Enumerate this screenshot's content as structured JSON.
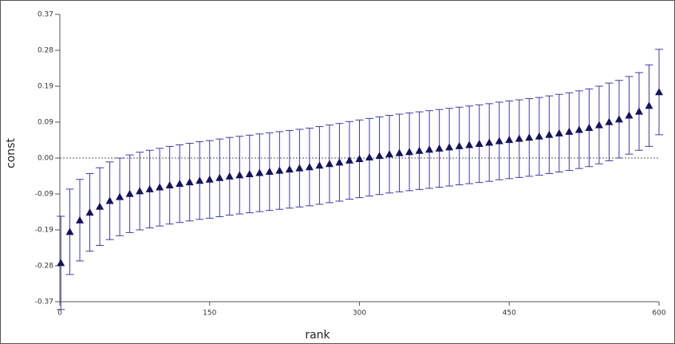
{
  "chart_data": {
    "type": "caterpillar",
    "x_label": "rank",
    "y_label": "const",
    "x": [
      1,
      10,
      20,
      30,
      40,
      50,
      60,
      70,
      80,
      90,
      100,
      110,
      120,
      130,
      140,
      150,
      160,
      170,
      180,
      190,
      200,
      210,
      220,
      230,
      240,
      250,
      260,
      270,
      280,
      290,
      300,
      310,
      320,
      330,
      340,
      350,
      360,
      370,
      380,
      390,
      400,
      410,
      420,
      430,
      440,
      450,
      460,
      470,
      480,
      490,
      500,
      510,
      520,
      530,
      540,
      550,
      560,
      570,
      580,
      590,
      600
    ],
    "values": [
      -0.27,
      -0.19,
      -0.16,
      -0.14,
      -0.125,
      -0.11,
      -0.1,
      -0.092,
      -0.085,
      -0.08,
      -0.075,
      -0.07,
      -0.066,
      -0.062,
      -0.058,
      -0.055,
      -0.051,
      -0.047,
      -0.044,
      -0.041,
      -0.038,
      -0.035,
      -0.032,
      -0.029,
      -0.026,
      -0.023,
      -0.019,
      -0.015,
      -0.011,
      -0.006,
      -0.002,
      0.002,
      0.006,
      0.01,
      0.013,
      0.016,
      0.019,
      0.022,
      0.025,
      0.028,
      0.031,
      0.034,
      0.037,
      0.04,
      0.044,
      0.047,
      0.05,
      0.053,
      0.056,
      0.06,
      0.064,
      0.068,
      0.073,
      0.078,
      0.085,
      0.093,
      0.1,
      0.11,
      0.12,
      0.135,
      0.17
    ],
    "errors": [
      0.12,
      0.11,
      0.105,
      0.1,
      0.1,
      0.1,
      0.1,
      0.1,
      0.1,
      0.1,
      0.1,
      0.1,
      0.1,
      0.1,
      0.1,
      0.1,
      0.1,
      0.1,
      0.1,
      0.1,
      0.1,
      0.1,
      0.1,
      0.1,
      0.1,
      0.1,
      0.1,
      0.1,
      0.1,
      0.1,
      0.1,
      0.1,
      0.1,
      0.1,
      0.1,
      0.1,
      0.1,
      0.1,
      0.1,
      0.1,
      0.1,
      0.1,
      0.1,
      0.1,
      0.1,
      0.1,
      0.1,
      0.1,
      0.1,
      0.1,
      0.1,
      0.1,
      0.1,
      0.1,
      0.1,
      0.1,
      0.1,
      0.1,
      0.1,
      0.105,
      0.11
    ],
    "bar_color": "#3c3ca8",
    "marker_color": "#14145e",
    "reference_line": 0,
    "xlim": [
      0,
      600
    ],
    "xticks": [
      0,
      150,
      300,
      450,
      600
    ],
    "ylim": [
      -0.37,
      0.37
    ],
    "yticks": [
      {
        "value": -0.37,
        "label": "-0.37"
      },
      {
        "value": -0.2775,
        "label": "-0.28"
      },
      {
        "value": -0.185,
        "label": "-0.19"
      },
      {
        "value": -0.0925,
        "label": "-0.09"
      },
      {
        "value": 0,
        "label": "0.00"
      },
      {
        "value": 0.0925,
        "label": "0.09"
      },
      {
        "value": 0.185,
        "label": "0.19"
      },
      {
        "value": 0.2775,
        "label": "0.28"
      },
      {
        "value": 0.37,
        "label": "0.37"
      }
    ]
  }
}
